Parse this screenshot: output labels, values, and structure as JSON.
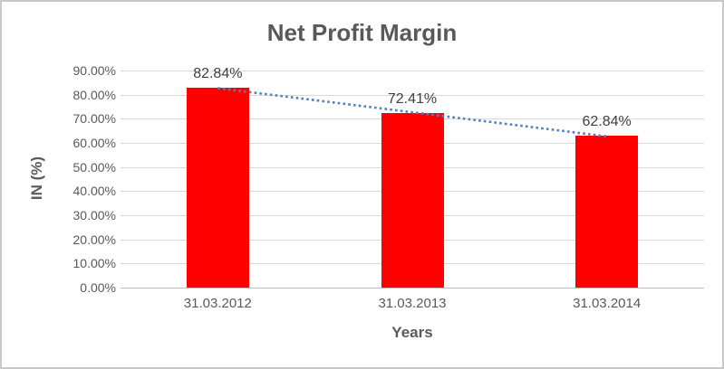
{
  "window": {
    "background": "#FFFFFF",
    "border_color": "#C9C9C9"
  },
  "chart_data": {
    "type": "bar",
    "title": "Net Profit Margin",
    "xlabel": "Years",
    "ylabel": "IN (%)",
    "categories": [
      "31.03.2012",
      "31.03.2013",
      "31.03.2014"
    ],
    "values": [
      82.84,
      72.41,
      62.84
    ],
    "data_labels": [
      "82.84%",
      "72.41%",
      "62.84%"
    ],
    "ylim": [
      0,
      90
    ],
    "ytick_step": 10,
    "ytick_labels": [
      "0.00%",
      "10.00%",
      "20.00%",
      "30.00%",
      "40.00%",
      "50.00%",
      "60.00%",
      "70.00%",
      "80.00%",
      "90.00%"
    ],
    "grid": true,
    "legend": "none",
    "bar_color": "#FF0000",
    "trendline": {
      "type": "linear",
      "line_style": "dotted",
      "color": "#4E81BD",
      "start_value": 82.7,
      "end_value": 62.7
    },
    "title_color": "#595959",
    "tick_label_color": "#595959",
    "data_label_color": "#404040",
    "axis_title_color": "#595959",
    "gridline_color": "#D9D9D9",
    "axis_line_color": "#BFBFBF"
  }
}
